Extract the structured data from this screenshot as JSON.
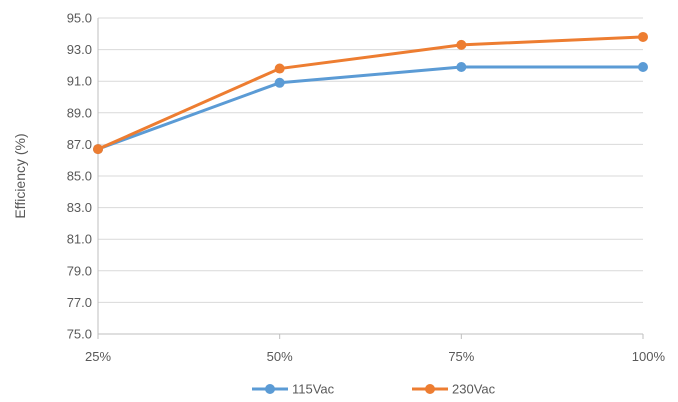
{
  "chart_data": {
    "type": "line",
    "categories": [
      "25%",
      "50%",
      "75%",
      "100%"
    ],
    "series": [
      {
        "name": "115Vac",
        "color": "#5b9bd5",
        "values": [
          86.7,
          90.9,
          91.9,
          91.9
        ]
      },
      {
        "name": "230Vac",
        "color": "#ed7d31",
        "values": [
          86.7,
          91.8,
          93.3,
          93.8
        ]
      }
    ],
    "title": "",
    "xlabel": "",
    "ylabel": "Efficiency (%)",
    "ylim": [
      75.0,
      95.0
    ],
    "yticks": [
      "75.0",
      "77.0",
      "79.0",
      "81.0",
      "83.0",
      "85.0",
      "87.0",
      "89.0",
      "91.0",
      "93.0",
      "95.0"
    ],
    "grid": "horizontal",
    "legend_position": "bottom"
  }
}
